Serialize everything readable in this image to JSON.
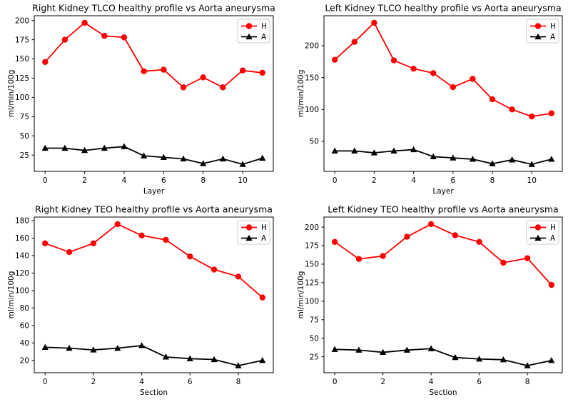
{
  "figure": {
    "background": "#ffffff",
    "text_color": "#000000",
    "spine_color": "#000000",
    "legend_border_color": "#cccccc",
    "legend_background": "#ffffff",
    "legend_entries": [
      "H",
      "A"
    ]
  },
  "chart_data": [
    {
      "type": "line",
      "title": "Right Kidney TLCO healthy profile vs Aorta aneurysma",
      "xlabel": "Layer",
      "ylabel": "ml/min/100g",
      "grid": false,
      "legend_position": "upper right",
      "x": [
        0,
        1,
        2,
        3,
        4,
        5,
        6,
        7,
        8,
        9,
        10,
        11
      ],
      "series": [
        {
          "name": "H",
          "color": "#ff0000",
          "marker": "circle",
          "values": [
            146,
            175,
            197,
            180,
            178,
            134,
            136,
            113,
            126,
            113,
            135,
            132
          ]
        },
        {
          "name": "A",
          "color": "#000000",
          "marker": "triangle",
          "values": [
            34,
            34,
            31,
            34,
            36,
            24,
            22,
            20,
            14,
            20,
            13,
            21
          ]
        }
      ],
      "xticks": [
        0,
        2,
        4,
        6,
        8,
        10
      ],
      "yticks": [
        25,
        50,
        75,
        100,
        125,
        150,
        175,
        200
      ],
      "xlim": [
        -0.55,
        11.55
      ],
      "ylim": [
        3.8,
        206.2
      ]
    },
    {
      "type": "line",
      "title": "Left Kidney TLCO healthy profile vs Aorta aneurysma",
      "xlabel": "Layer",
      "ylabel": "ml/min/100g",
      "grid": false,
      "legend_position": "upper right",
      "x": [
        0,
        1,
        2,
        3,
        4,
        5,
        6,
        7,
        8,
        9,
        10,
        11
      ],
      "series": [
        {
          "name": "H",
          "color": "#ff0000",
          "marker": "circle",
          "values": [
            178,
            206,
            236,
            177,
            164,
            157,
            135,
            148,
            116,
            100,
            89,
            94
          ]
        },
        {
          "name": "A",
          "color": "#000000",
          "marker": "triangle",
          "values": [
            35,
            35,
            32,
            35,
            37,
            26,
            24,
            22,
            15,
            21,
            14,
            22
          ]
        }
      ],
      "xticks": [
        0,
        2,
        4,
        6,
        8,
        10
      ],
      "yticks": [
        50,
        100,
        150,
        200
      ],
      "xlim": [
        -0.55,
        11.55
      ],
      "ylim": [
        2.9,
        247.1
      ]
    },
    {
      "type": "line",
      "title": "Right Kidney TEO healthy profile vs Aorta aneurysma",
      "xlabel": "Section",
      "ylabel": "ml/min/100g",
      "grid": false,
      "legend_position": "upper right",
      "x": [
        0,
        1,
        2,
        3,
        4,
        5,
        6,
        7,
        8,
        9
      ],
      "series": [
        {
          "name": "H",
          "color": "#ff0000",
          "marker": "circle",
          "values": [
            154,
            144,
            154,
            176,
            163,
            158,
            139,
            124,
            116,
            92
          ]
        },
        {
          "name": "A",
          "color": "#000000",
          "marker": "triangle",
          "values": [
            35,
            34,
            32,
            34,
            37,
            24,
            22,
            21,
            14,
            20
          ]
        }
      ],
      "xticks": [
        0,
        2,
        4,
        6,
        8
      ],
      "yticks": [
        20,
        40,
        60,
        80,
        100,
        120,
        140,
        160,
        180
      ],
      "xlim": [
        -0.45,
        9.45
      ],
      "ylim": [
        5.9,
        184.1
      ]
    },
    {
      "type": "line",
      "title": "Left Kidney TEO healthy profile vs Aorta aneurysma",
      "xlabel": "Section",
      "ylabel": "ml/min/100g",
      "grid": false,
      "legend_position": "upper right",
      "x": [
        0,
        1,
        2,
        3,
        4,
        5,
        6,
        7,
        8,
        9
      ],
      "series": [
        {
          "name": "H",
          "color": "#ff0000",
          "marker": "circle",
          "values": [
            180,
            157,
            161,
            187,
            204,
            189,
            180,
            152,
            158,
            122
          ]
        },
        {
          "name": "A",
          "color": "#000000",
          "marker": "triangle",
          "values": [
            35,
            34,
            31,
            34,
            36,
            24,
            22,
            21,
            13,
            20
          ]
        }
      ],
      "xticks": [
        0,
        2,
        4,
        6,
        8
      ],
      "yticks": [
        25,
        50,
        75,
        100,
        125,
        150,
        175,
        200
      ],
      "xlim": [
        -0.45,
        9.45
      ],
      "ylim": [
        3.45,
        213.55
      ]
    }
  ]
}
